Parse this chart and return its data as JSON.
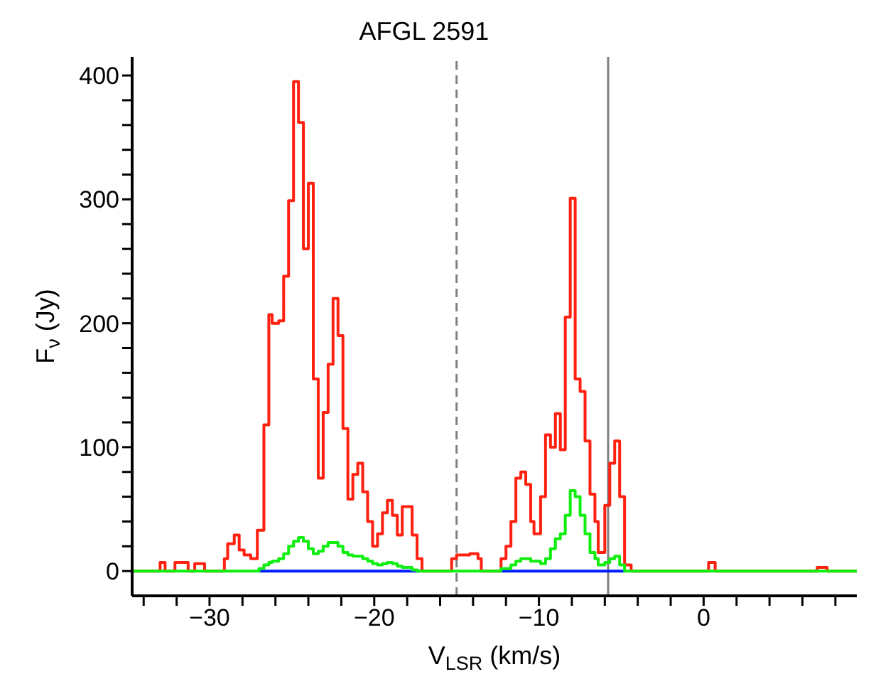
{
  "chart_data": {
    "type": "step",
    "title": "AFGL 2591",
    "xlabel": "V$_{LSR}$ (km/s)",
    "ylabel": "F$_{ν}$ (Jy)",
    "xlim": [
      -34.7,
      9.3
    ],
    "ylim": [
      -20,
      415
    ],
    "xticks": [
      {
        "value": -34,
        "label": null
      },
      {
        "value": -32,
        "label": null
      },
      -30,
      {
        "value": -28,
        "label": null
      },
      {
        "value": -26,
        "label": null
      },
      {
        "value": -24,
        "label": null
      },
      {
        "value": -22,
        "label": null
      },
      -20,
      {
        "value": -18,
        "label": null
      },
      {
        "value": -16,
        "label": null
      },
      {
        "value": -14,
        "label": null
      },
      {
        "value": -12,
        "label": null
      },
      -10,
      {
        "value": -8,
        "label": null
      },
      {
        "value": -6,
        "label": null
      },
      {
        "value": -4,
        "label": null
      },
      {
        "value": -2,
        "label": null
      },
      0,
      {
        "value": 2,
        "label": null
      },
      {
        "value": 4,
        "label": null
      },
      {
        "value": 6,
        "label": null
      },
      {
        "value": 8,
        "label": null
      }
    ],
    "yticks": [
      0,
      {
        "value": 20,
        "label": null
      },
      {
        "value": 40,
        "label": null
      },
      {
        "value": 60,
        "label": null
      },
      {
        "value": 80,
        "label": null
      },
      100,
      {
        "value": 120,
        "label": null
      },
      {
        "value": 140,
        "label": null
      },
      {
        "value": 160,
        "label": null
      },
      {
        "value": 180,
        "label": null
      },
      200,
      {
        "value": 220,
        "label": null
      },
      {
        "value": 240,
        "label": null
      },
      {
        "value": 260,
        "label": null
      },
      {
        "value": 280,
        "label": null
      },
      300,
      {
        "value": 320,
        "label": null
      },
      {
        "value": 340,
        "label": null
      },
      {
        "value": 360,
        "label": null
      },
      {
        "value": 380,
        "label": null
      },
      400
    ],
    "grid": false,
    "legend": false,
    "marker": "none",
    "line_style": "solid",
    "ref_lines": [
      {
        "axis": "x",
        "value": -15,
        "color": "#808080",
        "line_style": "dashed"
      },
      {
        "axis": "x",
        "value": -5.8,
        "color": "#808080",
        "line_style": "solid"
      }
    ],
    "series": [
      {
        "color": "#ff2010",
        "x": [
          -34.7,
          -33.0,
          -32.7,
          -32.1,
          -31.3,
          -30.9,
          -30.3,
          -29.1,
          -28.9,
          -28.5,
          -28.2,
          -27.9,
          -27.5,
          -27.1,
          -26.7,
          -26.4,
          -26.2,
          -25.8,
          -25.5,
          -25.2,
          -24.9,
          -24.6,
          -24.3,
          -24.0,
          -23.7,
          -23.4,
          -23.1,
          -22.8,
          -22.5,
          -22.2,
          -21.9,
          -21.6,
          -21.3,
          -21.0,
          -20.7,
          -20.4,
          -20.1,
          -19.8,
          -19.5,
          -19.2,
          -18.9,
          -18.6,
          -18.3,
          -17.7,
          -17.4,
          -17.1,
          -15.3,
          -15.0,
          -14.2,
          -13.7,
          -13.5,
          -12.3,
          -12.0,
          -11.7,
          -11.4,
          -11.1,
          -10.8,
          -10.5,
          -10.3,
          -9.9,
          -9.6,
          -9.3,
          -9.0,
          -8.7,
          -8.4,
          -8.1,
          -7.8,
          -7.5,
          -7.2,
          -6.9,
          -6.6,
          -6.4,
          -6.0,
          -5.7,
          -5.4,
          -5.1,
          -4.8,
          -4.4,
          0.3,
          0.7,
          6.9,
          7.5,
          9.3
        ],
        "values": [
          0,
          7,
          0,
          7,
          0,
          6,
          0,
          10,
          22,
          29,
          17,
          13,
          10,
          33,
          118,
          207,
          200,
          202,
          238,
          299,
          395,
          362,
          260,
          313,
          155,
          75,
          128,
          167,
          220,
          190,
          115,
          58,
          78,
          87,
          64,
          40,
          20,
          30,
          47,
          57,
          45,
          29,
          52,
          29,
          10,
          0,
          10,
          13,
          14,
          10,
          0,
          10,
          20,
          40,
          75,
          80,
          70,
          40,
          30,
          60,
          110,
          100,
          127,
          98,
          205,
          301,
          155,
          145,
          105,
          62,
          40,
          15,
          53,
          87,
          105,
          60,
          5,
          0,
          7,
          0,
          3,
          0,
          0
        ]
      },
      {
        "color": "#0020ff",
        "x": [
          -27.0,
          -17.2,
          -17.1,
          -12.3,
          -4.8
        ],
        "values": [
          0,
          0,
          null,
          0,
          0
        ]
      },
      {
        "color": "#10ee10",
        "x": [
          -34.7,
          -27.0,
          -26.7,
          -26.4,
          -26.2,
          -25.8,
          -25.5,
          -25.2,
          -24.9,
          -24.6,
          -24.3,
          -24.0,
          -23.7,
          -23.4,
          -23.1,
          -22.8,
          -22.5,
          -22.2,
          -21.9,
          -21.6,
          -21.3,
          -20.7,
          -20.4,
          -20.1,
          -19.8,
          -19.5,
          -19.2,
          -18.9,
          -18.6,
          -18.3,
          -17.7,
          -17.4,
          -12.3,
          -11.7,
          -11.4,
          -11.1,
          -10.5,
          -9.9,
          -9.6,
          -9.3,
          -9.0,
          -8.7,
          -8.4,
          -8.1,
          -7.8,
          -7.5,
          -7.2,
          -6.9,
          -6.6,
          -6.4,
          -6.0,
          -5.7,
          -5.4,
          -5.1,
          -4.8,
          9.3
        ],
        "values": [
          0,
          2,
          5,
          7,
          8,
          10,
          14,
          20,
          24,
          27,
          24,
          18,
          14,
          16,
          20,
          23,
          23,
          20,
          15,
          13,
          12,
          10,
          8,
          6,
          5,
          6,
          7,
          6,
          4,
          3,
          1,
          0,
          2,
          5,
          8,
          10,
          8,
          6,
          10,
          18,
          26,
          30,
          45,
          65,
          60,
          45,
          30,
          15,
          10,
          5,
          7,
          10,
          12,
          5,
          0,
          0
        ]
      }
    ]
  }
}
